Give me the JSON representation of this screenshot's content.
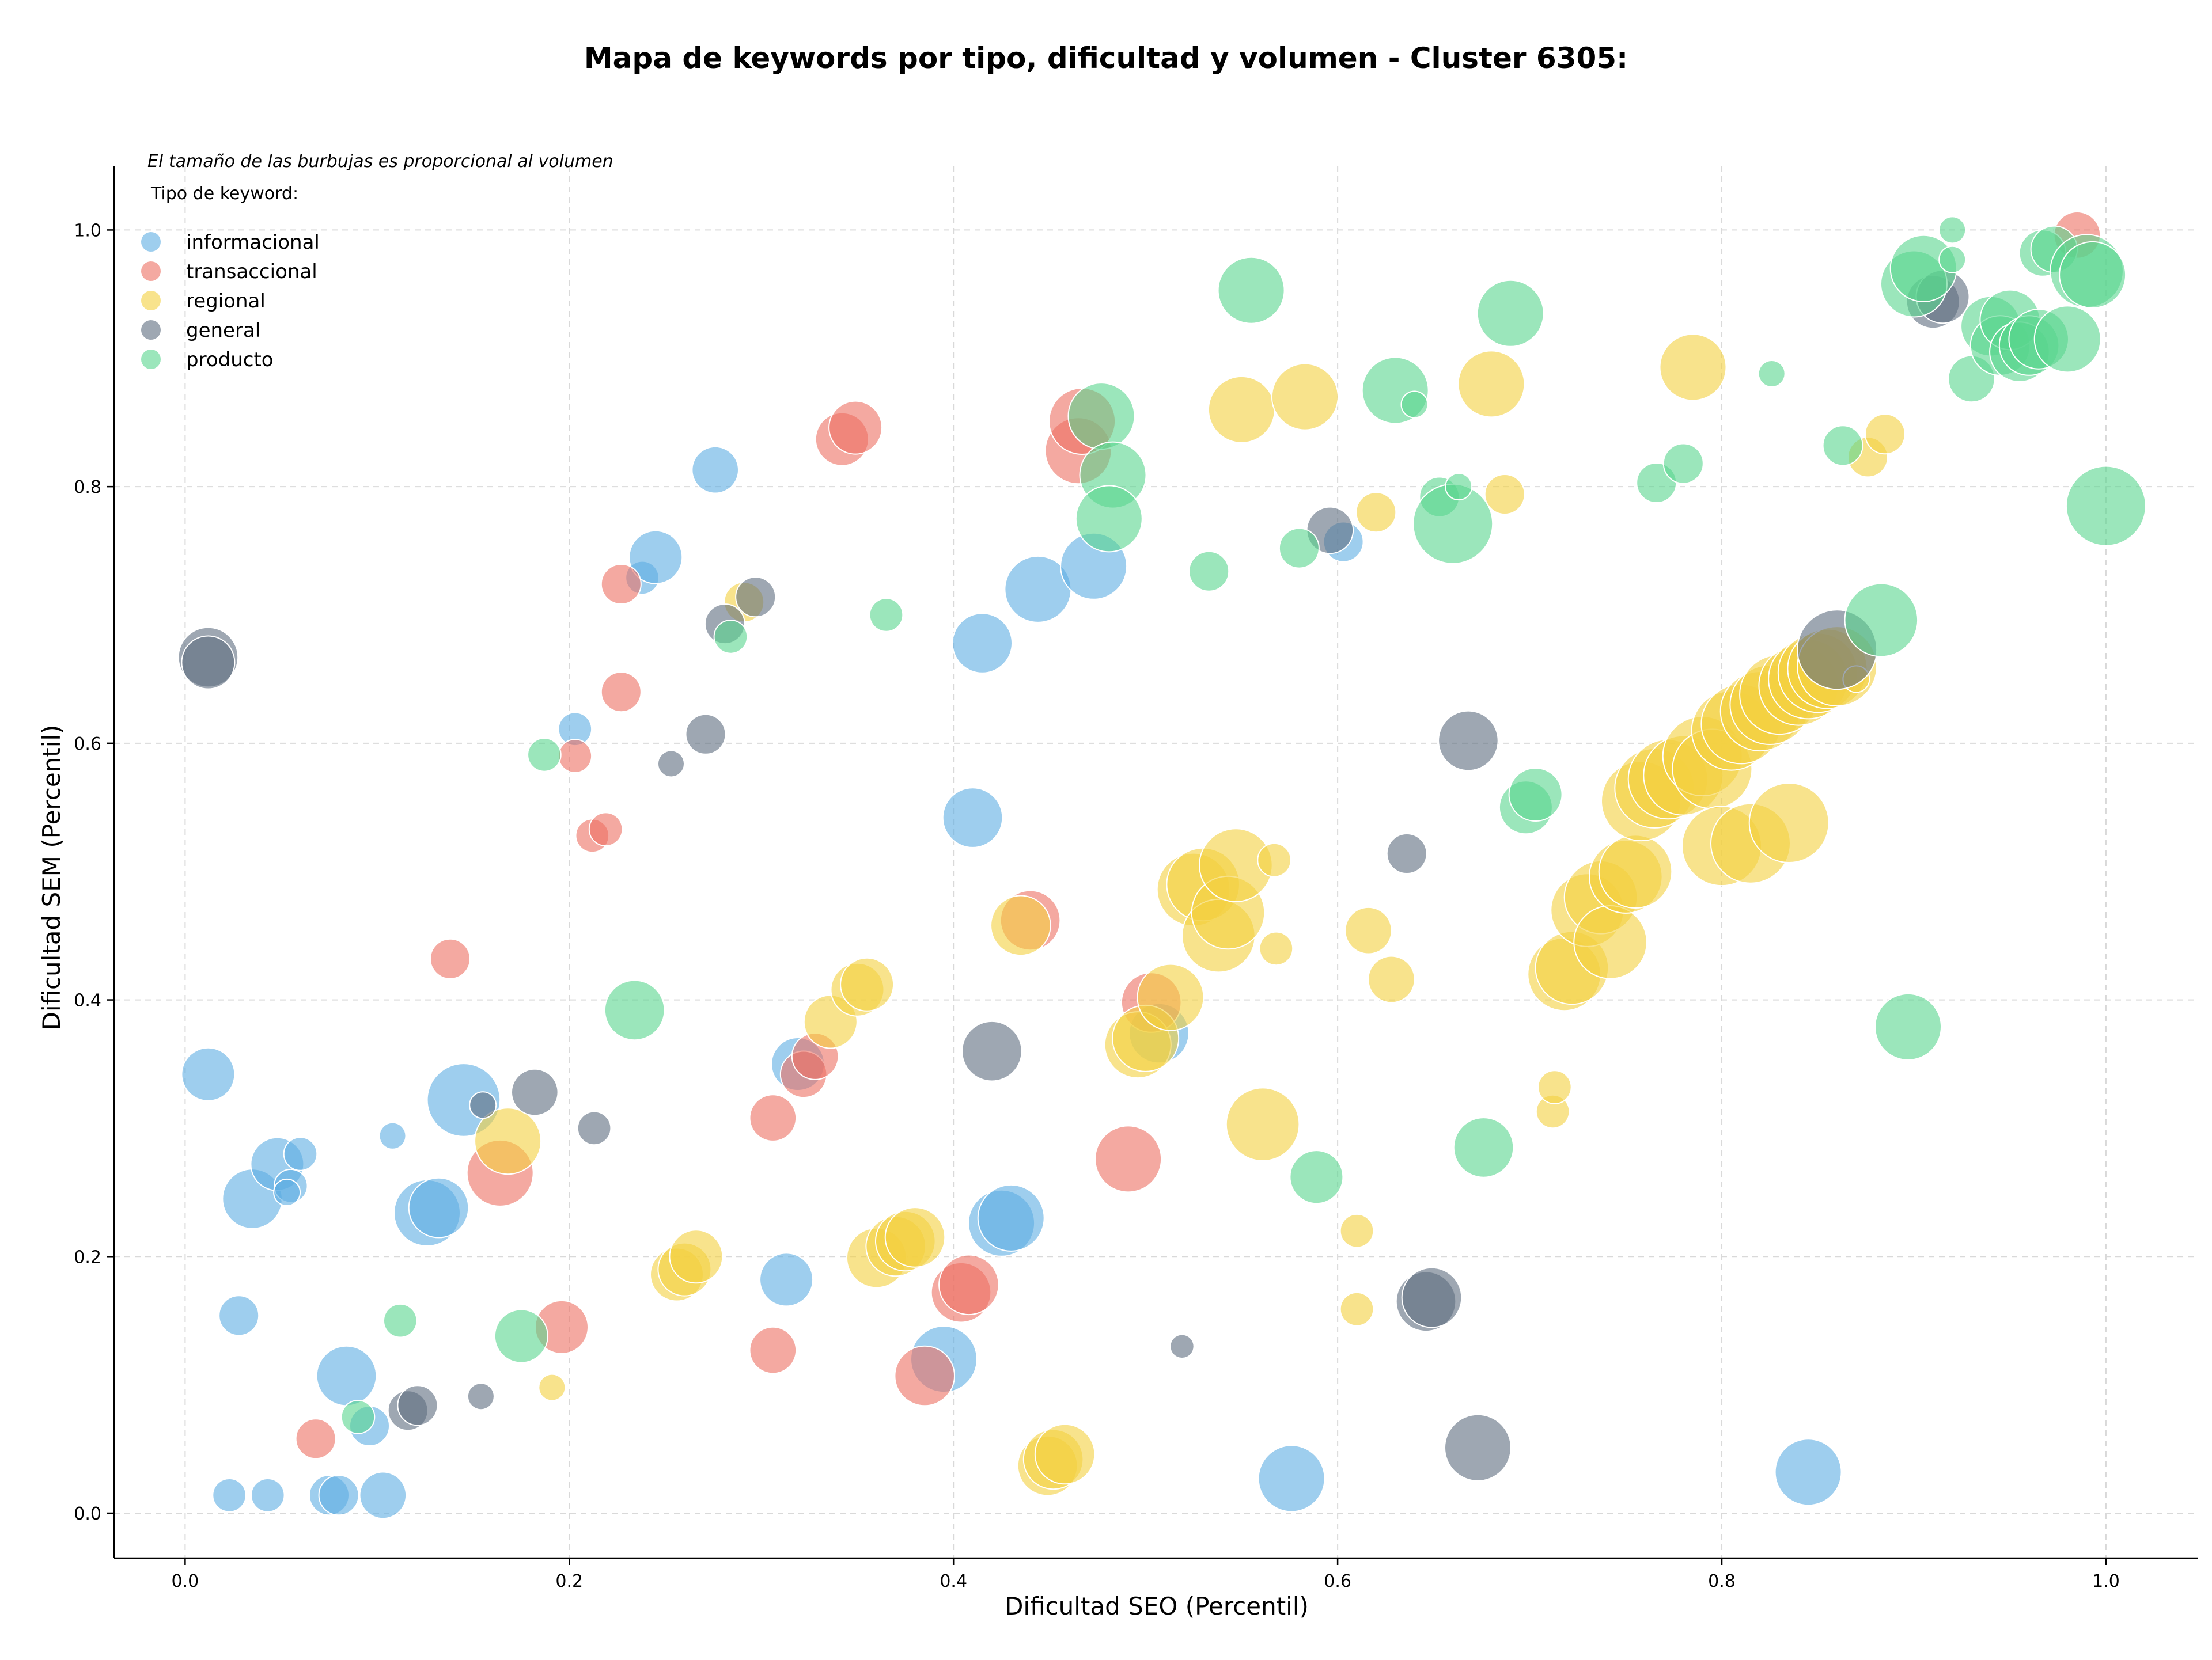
{
  "chart_data": {
    "type": "scatter",
    "title": "Mapa de keywords por tipo, dificultad y volumen - Cluster 6305:",
    "note": "El tamaño de las burbujas es proporcional al volumen",
    "legend_title": "Tipo de keyword:",
    "legend_position": "top-left",
    "xlabel": "Dificultad SEO (Percentil)",
    "ylabel": "Dificultad SEM (Percentil)",
    "xlim": [
      -0.037,
      1.048
    ],
    "ylim": [
      -0.035,
      1.05
    ],
    "xticks": [
      "0.0",
      "0.2",
      "0.4",
      "0.6",
      "0.8",
      "1.0"
    ],
    "yticks": [
      "0.0",
      "0.2",
      "0.4",
      "0.6",
      "0.8",
      "1.0"
    ],
    "grid": true,
    "size_scale_note": "size = relative bubble radius",
    "series": [
      {
        "name": "informacional",
        "color": "#5DADE2",
        "points": [
          [
            0.012,
            0.342,
            4
          ],
          [
            0.035,
            0.245,
            4.5
          ],
          [
            0.048,
            0.272,
            4
          ],
          [
            0.055,
            0.255,
            2.5
          ],
          [
            0.06,
            0.28,
            2.5
          ],
          [
            0.053,
            0.25,
            2
          ],
          [
            0.028,
            0.154,
            3
          ],
          [
            0.023,
            0.014,
            2.5
          ],
          [
            0.043,
            0.014,
            2.5
          ],
          [
            0.075,
            0.014,
            3
          ],
          [
            0.08,
            0.014,
            3
          ],
          [
            0.103,
            0.014,
            3.5
          ],
          [
            0.084,
            0.107,
            4.5
          ],
          [
            0.096,
            0.068,
            3
          ],
          [
            0.108,
            0.294,
            2
          ],
          [
            0.126,
            0.234,
            5
          ],
          [
            0.132,
            0.238,
            4.5
          ],
          [
            0.145,
            0.322,
            5.5
          ],
          [
            0.203,
            0.611,
            2.5
          ],
          [
            0.238,
            0.729,
            2.5
          ],
          [
            0.245,
            0.745,
            4
          ],
          [
            0.276,
            0.813,
            3.5
          ],
          [
            0.313,
            0.182,
            4
          ],
          [
            0.319,
            0.35,
            4
          ],
          [
            0.395,
            0.12,
            5
          ],
          [
            0.41,
            0.542,
            4.5
          ],
          [
            0.415,
            0.678,
            4.5
          ],
          [
            0.425,
            0.226,
            5
          ],
          [
            0.43,
            0.23,
            5
          ],
          [
            0.444,
            0.72,
            5
          ],
          [
            0.473,
            0.738,
            5
          ],
          [
            0.507,
            0.374,
            4.5
          ],
          [
            0.576,
            0.027,
            5
          ],
          [
            0.603,
            0.757,
            3
          ],
          [
            0.845,
            0.032,
            5
          ]
        ]
      },
      {
        "name": "transaccional",
        "color": "#EC7063",
        "points": [
          [
            0.068,
            0.058,
            3
          ],
          [
            0.138,
            0.432,
            3
          ],
          [
            0.164,
            0.265,
            5
          ],
          [
            0.196,
            0.145,
            4
          ],
          [
            0.203,
            0.59,
            2.5
          ],
          [
            0.212,
            0.528,
            2.5
          ],
          [
            0.219,
            0.533,
            2.5
          ],
          [
            0.227,
            0.64,
            3
          ],
          [
            0.227,
            0.724,
            3
          ],
          [
            0.306,
            0.127,
            3.5
          ],
          [
            0.306,
            0.308,
            3.5
          ],
          [
            0.322,
            0.342,
            3.5
          ],
          [
            0.328,
            0.356,
            3.5
          ],
          [
            0.342,
            0.837,
            4
          ],
          [
            0.349,
            0.846,
            4
          ],
          [
            0.385,
            0.107,
            4.5
          ],
          [
            0.404,
            0.172,
            4.5
          ],
          [
            0.408,
            0.178,
            4.5
          ],
          [
            0.44,
            0.462,
            4.5
          ],
          [
            0.465,
            0.828,
            5
          ],
          [
            0.467,
            0.851,
            5
          ],
          [
            0.491,
            0.276,
            5
          ],
          [
            0.503,
            0.398,
            4.5
          ],
          [
            0.985,
            0.996,
            3.5
          ]
        ]
      },
      {
        "name": "regional",
        "color": "#F4D03F",
        "points": [
          [
            0.191,
            0.098,
            2
          ],
          [
            0.168,
            0.29,
            5
          ],
          [
            0.256,
            0.186,
            4
          ],
          [
            0.26,
            0.19,
            4
          ],
          [
            0.266,
            0.2,
            4
          ],
          [
            0.291,
            0.71,
            3
          ],
          [
            0.336,
            0.383,
            4
          ],
          [
            0.35,
            0.408,
            4
          ],
          [
            0.355,
            0.412,
            4
          ],
          [
            0.36,
            0.199,
            4.5
          ],
          [
            0.37,
            0.208,
            4.5
          ],
          [
            0.375,
            0.212,
            4.5
          ],
          [
            0.38,
            0.215,
            4.5
          ],
          [
            0.435,
            0.458,
            4.5
          ],
          [
            0.449,
            0.037,
            4.5
          ],
          [
            0.452,
            0.042,
            4.5
          ],
          [
            0.458,
            0.046,
            4.5
          ],
          [
            0.496,
            0.365,
            5
          ],
          [
            0.5,
            0.37,
            5
          ],
          [
            0.513,
            0.402,
            5
          ],
          [
            0.525,
            0.486,
            5.5
          ],
          [
            0.53,
            0.49,
            5.5
          ],
          [
            0.538,
            0.45,
            5.5
          ],
          [
            0.543,
            0.468,
            5.5
          ],
          [
            0.547,
            0.505,
            5.5
          ],
          [
            0.55,
            0.86,
            5
          ],
          [
            0.561,
            0.303,
            5.5
          ],
          [
            0.567,
            0.509,
            2.5
          ],
          [
            0.568,
            0.44,
            2.5
          ],
          [
            0.583,
            0.87,
            5
          ],
          [
            0.61,
            0.159,
            2.5
          ],
          [
            0.61,
            0.22,
            2.5
          ],
          [
            0.616,
            0.454,
            3.5
          ],
          [
            0.62,
            0.78,
            3
          ],
          [
            0.628,
            0.416,
            3.5
          ],
          [
            0.68,
            0.88,
            5
          ],
          [
            0.687,
            0.794,
            3
          ],
          [
            0.712,
            0.313,
            2.5
          ],
          [
            0.713,
            0.332,
            2.5
          ],
          [
            0.718,
            0.42,
            5.5
          ],
          [
            0.722,
            0.425,
            5.5
          ],
          [
            0.73,
            0.47,
            5.5
          ],
          [
            0.737,
            0.48,
            5.5
          ],
          [
            0.742,
            0.445,
            5.5
          ],
          [
            0.75,
            0.496,
            5.5
          ],
          [
            0.755,
            0.5,
            5.5
          ],
          [
            0.758,
            0.555,
            6
          ],
          [
            0.765,
            0.565,
            6
          ],
          [
            0.772,
            0.572,
            6
          ],
          [
            0.78,
            0.575,
            6
          ],
          [
            0.785,
            0.893,
            5
          ],
          [
            0.79,
            0.59,
            6
          ],
          [
            0.795,
            0.58,
            6
          ],
          [
            0.8,
            0.52,
            6
          ],
          [
            0.805,
            0.61,
            6
          ],
          [
            0.81,
            0.615,
            6
          ],
          [
            0.815,
            0.522,
            6
          ],
          [
            0.82,
            0.625,
            6
          ],
          [
            0.825,
            0.63,
            6
          ],
          [
            0.83,
            0.638,
            6
          ],
          [
            0.835,
            0.538,
            6
          ],
          [
            0.84,
            0.645,
            6
          ],
          [
            0.845,
            0.65,
            6
          ],
          [
            0.85,
            0.655,
            6
          ],
          [
            0.855,
            0.658,
            6
          ],
          [
            0.86,
            0.66,
            6
          ],
          [
            0.87,
            0.65,
            2
          ],
          [
            0.876,
            0.823,
            3
          ],
          [
            0.885,
            0.841,
            3
          ]
        ]
      },
      {
        "name": "general",
        "color": "#5D6D7E",
        "points": [
          [
            0.012,
            0.667,
            4.5
          ],
          [
            0.012,
            0.663,
            4
          ],
          [
            0.116,
            0.08,
            3
          ],
          [
            0.121,
            0.084,
            3
          ],
          [
            0.154,
            0.091,
            2
          ],
          [
            0.155,
            0.318,
            2
          ],
          [
            0.182,
            0.328,
            3.5
          ],
          [
            0.213,
            0.3,
            2.5
          ],
          [
            0.253,
            0.584,
            2
          ],
          [
            0.271,
            0.607,
            3
          ],
          [
            0.281,
            0.693,
            3
          ],
          [
            0.297,
            0.714,
            3
          ],
          [
            0.42,
            0.36,
            4.5
          ],
          [
            0.519,
            0.13,
            1.8
          ],
          [
            0.596,
            0.766,
            3.5
          ],
          [
            0.636,
            0.514,
            3
          ],
          [
            0.646,
            0.165,
            4.5
          ],
          [
            0.649,
            0.168,
            4.5
          ],
          [
            0.668,
            0.602,
            4.5
          ],
          [
            0.673,
            0.051,
            5
          ],
          [
            0.86,
            0.673,
            6
          ],
          [
            0.91,
            0.944,
            4
          ],
          [
            0.915,
            0.948,
            4
          ]
        ]
      },
      {
        "name": "producto",
        "color": "#58D68D",
        "points": [
          [
            0.09,
            0.075,
            2.5
          ],
          [
            0.112,
            0.15,
            2.5
          ],
          [
            0.175,
            0.138,
            4
          ],
          [
            0.187,
            0.591,
            2.5
          ],
          [
            0.234,
            0.392,
            4.5
          ],
          [
            0.284,
            0.683,
            2.5
          ],
          [
            0.365,
            0.7,
            2.5
          ],
          [
            0.477,
            0.855,
            5
          ],
          [
            0.483,
            0.809,
            5
          ],
          [
            0.481,
            0.775,
            5
          ],
          [
            0.533,
            0.734,
            3
          ],
          [
            0.555,
            0.953,
            5
          ],
          [
            0.58,
            0.752,
            3
          ],
          [
            0.589,
            0.262,
            4
          ],
          [
            0.63,
            0.875,
            5
          ],
          [
            0.64,
            0.864,
            2
          ],
          [
            0.653,
            0.792,
            3
          ],
          [
            0.66,
            0.771,
            6
          ],
          [
            0.663,
            0.8,
            2
          ],
          [
            0.676,
            0.285,
            4.5
          ],
          [
            0.69,
            0.935,
            5
          ],
          [
            0.698,
            0.55,
            4
          ],
          [
            0.703,
            0.56,
            4
          ],
          [
            0.766,
            0.803,
            3
          ],
          [
            0.78,
            0.818,
            3
          ],
          [
            0.826,
            0.888,
            2
          ],
          [
            0.863,
            0.832,
            3
          ],
          [
            0.883,
            0.696,
            5.5
          ],
          [
            0.897,
            0.379,
            5
          ],
          [
            0.9,
            0.958,
            5
          ],
          [
            0.905,
            0.97,
            5
          ],
          [
            0.92,
            1.0,
            2
          ],
          [
            0.92,
            0.977,
            2
          ],
          [
            0.93,
            0.884,
            3.5
          ],
          [
            0.94,
            0.925,
            4.5
          ],
          [
            0.945,
            0.91,
            4.5
          ],
          [
            0.95,
            0.93,
            4.5
          ],
          [
            0.955,
            0.905,
            4.5
          ],
          [
            0.96,
            0.91,
            4.5
          ],
          [
            0.965,
            0.915,
            4.5
          ],
          [
            0.967,
            0.982,
            3.5
          ],
          [
            0.973,
            0.985,
            3.5
          ],
          [
            0.98,
            0.915,
            5
          ],
          [
            0.99,
            0.968,
            5.5
          ],
          [
            0.993,
            0.965,
            5
          ],
          [
            1.0,
            0.785,
            6
          ]
        ]
      }
    ]
  }
}
